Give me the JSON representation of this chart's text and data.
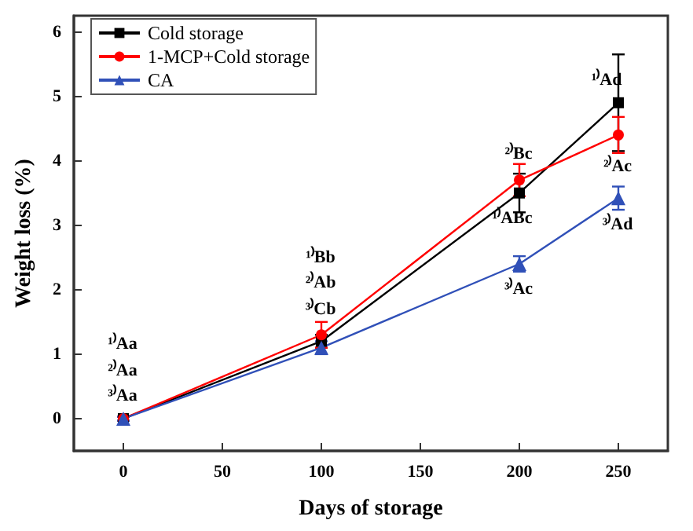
{
  "chart_data": {
    "type": "line",
    "xlabel": "Days of storage",
    "ylabel": "Weight loss (%)",
    "x": [
      0,
      100,
      200,
      250
    ],
    "series": [
      {
        "name": "Cold storage",
        "color": "#000000",
        "marker": "square",
        "values": [
          0,
          1.2,
          3.5,
          4.9
        ],
        "errors": [
          0.03,
          0.1,
          0.3,
          0.75
        ]
      },
      {
        "name": "1-MCP+Cold storage",
        "color": "#ff0000",
        "marker": "circle",
        "values": [
          0,
          1.3,
          3.7,
          4.4
        ],
        "errors": [
          0.03,
          0.2,
          0.25,
          0.28
        ]
      },
      {
        "name": "CA",
        "color": "#3050b8",
        "marker": "triangle",
        "values": [
          0,
          1.1,
          2.4,
          3.42
        ],
        "errors": [
          0.03,
          0.1,
          0.12,
          0.18
        ]
      }
    ],
    "xlim": [
      -25,
      275
    ],
    "xticks": [
      0,
      50,
      100,
      150,
      200,
      250
    ],
    "ylim": [
      -0.5,
      6.25
    ],
    "yticks": [
      0,
      1,
      2,
      3,
      4,
      5,
      6
    ],
    "grid": false,
    "legend": "top left",
    "line_style": "solid",
    "annotations": [
      "¹⁾Aa",
      "²⁾Aa",
      "³⁾Aa",
      "¹⁾Bb",
      "²⁾Ab",
      "³⁾Cb",
      "²⁾Bc",
      "¹⁾ABc",
      "³⁾Ac",
      "¹⁾Ad",
      "²⁾Ac",
      "³⁾Ad"
    ]
  }
}
